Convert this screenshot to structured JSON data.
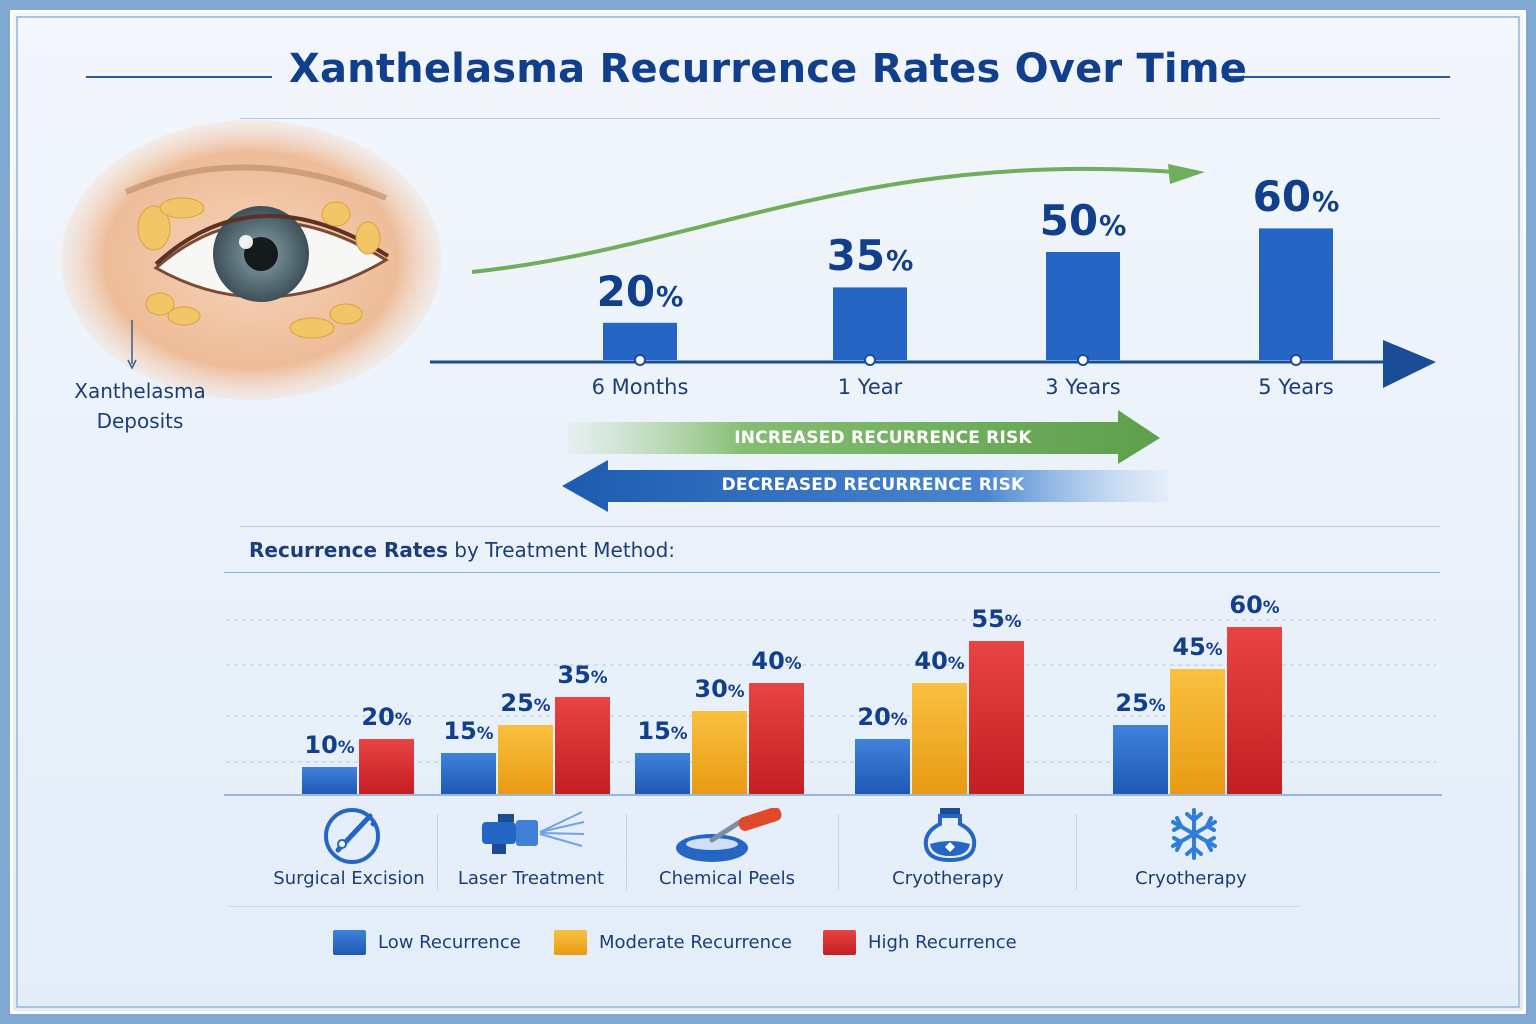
{
  "title": "Xanthelasma Recurrence Rates Over Time",
  "eye_label_line1": "Xanthelasma",
  "eye_label_line2": "Deposits",
  "colors": {
    "low": "#2566c4",
    "moderate": "#f1a81c",
    "high": "#d42b2b",
    "navy": "#123f8c",
    "green": "#6fae5a"
  },
  "risk": {
    "increased": "INCREASED RECURRENCE RISK",
    "decreased": "DECREASED RECURRENCE RISK"
  },
  "section_title": {
    "bold": "Recurrence Rates",
    "rest": " by Treatment Method:"
  },
  "legend": {
    "low": "Low Recurrence",
    "moderate": "Moderate Recurrence",
    "high": "High Recurrence"
  },
  "chart_data": [
    {
      "type": "bar",
      "title": "Xanthelasma Recurrence Rates Over Time",
      "categories": [
        "6 Months",
        "1 Year",
        "3 Years",
        "5 Years"
      ],
      "values": [
        20,
        35,
        50,
        60
      ],
      "unit": "%",
      "ylim": [
        0,
        65
      ]
    },
    {
      "type": "bar",
      "title": "Recurrence Rates by Treatment Method:",
      "unit": "%",
      "ylim": [
        0,
        65
      ],
      "groups": [
        {
          "method": "Surgical Excision",
          "icon": "scalpel-icon",
          "bars": [
            {
              "series": "low",
              "value": 10
            },
            {
              "series": "high",
              "value": 20
            }
          ]
        },
        {
          "method": "Laser Treatment",
          "icon": "laser-icon",
          "bars": [
            {
              "series": "low",
              "value": 15
            },
            {
              "series": "moderate",
              "value": 25
            },
            {
              "series": "high",
              "value": 35
            }
          ]
        },
        {
          "method": "Chemical Peels",
          "icon": "dropper-icon",
          "bars": [
            {
              "series": "low",
              "value": 15
            },
            {
              "series": "moderate",
              "value": 30
            },
            {
              "series": "high",
              "value": 40
            }
          ]
        },
        {
          "method": "Cryotherapy",
          "icon": "flask-icon",
          "bars": [
            {
              "series": "low",
              "value": 20
            },
            {
              "series": "moderate",
              "value": 40
            },
            {
              "series": "high",
              "value": 55
            }
          ]
        },
        {
          "method": "Cryotherapy",
          "icon": "snowflake-icon",
          "bars": [
            {
              "series": "low",
              "value": 25
            },
            {
              "series": "moderate",
              "value": 45
            },
            {
              "series": "high",
              "value": 60
            }
          ]
        }
      ]
    }
  ]
}
